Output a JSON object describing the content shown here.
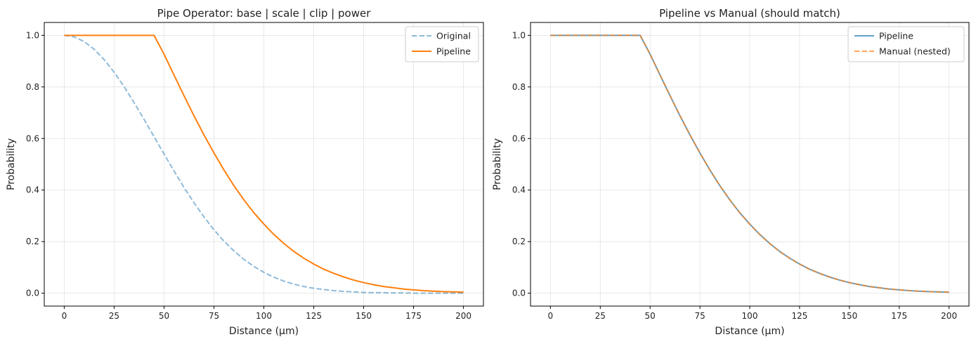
{
  "chart_data": [
    {
      "type": "line",
      "title": "Pipe Operator: base | scale | clip | power",
      "xlabel": "Distance (µm)",
      "ylabel": "Probability",
      "xlim": [
        -10,
        210
      ],
      "ylim": [
        -0.05,
        1.05
      ],
      "xticks": [
        0,
        25,
        50,
        75,
        100,
        125,
        150,
        175,
        200
      ],
      "yticks": [
        0.0,
        0.2,
        0.4,
        0.6,
        0.8,
        1.0
      ],
      "xtick_labels": [
        "0",
        "25",
        "50",
        "75",
        "100",
        "125",
        "150",
        "175",
        "200"
      ],
      "ytick_labels": [
        "0.0",
        "0.2",
        "0.4",
        "0.6",
        "0.8",
        "1.0"
      ],
      "grid": true,
      "legend": "top-right",
      "x": [
        0,
        5,
        10,
        15,
        20,
        25,
        30,
        35,
        40,
        45,
        50,
        55,
        60,
        65,
        70,
        75,
        80,
        85,
        90,
        95,
        100,
        105,
        110,
        115,
        120,
        125,
        130,
        135,
        140,
        145,
        150,
        155,
        160,
        165,
        170,
        175,
        180,
        185,
        190,
        195,
        200
      ],
      "series": [
        {
          "name": "Original",
          "color": "#1f77b4",
          "style": "dashed",
          "values": [
            1.0,
            0.994,
            0.976,
            0.946,
            0.906,
            0.857,
            0.801,
            0.739,
            0.674,
            0.607,
            0.54,
            0.474,
            0.41,
            0.351,
            0.296,
            0.246,
            0.202,
            0.164,
            0.131,
            0.104,
            0.081,
            0.062,
            0.047,
            0.035,
            0.026,
            0.019,
            0.014,
            0.01,
            0.007,
            0.005,
            0.003,
            0.002,
            0.002,
            0.001,
            0.001,
            0.0,
            0.0,
            0.0,
            0.0,
            0.0,
            0.0
          ]
        },
        {
          "name": "Pipeline",
          "color": "#ff7f0e",
          "style": "solid",
          "values": [
            1.0,
            1.0,
            1.0,
            1.0,
            1.0,
            1.0,
            1.0,
            1.0,
            1.0,
            1.0,
            0.927,
            0.846,
            0.766,
            0.688,
            0.614,
            0.544,
            0.478,
            0.417,
            0.362,
            0.312,
            0.268,
            0.228,
            0.193,
            0.162,
            0.136,
            0.113,
            0.093,
            0.077,
            0.063,
            0.051,
            0.041,
            0.033,
            0.026,
            0.021,
            0.016,
            0.013,
            0.01,
            0.008,
            0.006,
            0.005,
            0.004
          ]
        }
      ]
    },
    {
      "type": "line",
      "title": "Pipeline vs Manual (should match)",
      "xlabel": "Distance (µm)",
      "ylabel": "Probability",
      "xlim": [
        -10,
        210
      ],
      "ylim": [
        -0.05,
        1.05
      ],
      "xticks": [
        0,
        25,
        50,
        75,
        100,
        125,
        150,
        175,
        200
      ],
      "yticks": [
        0.0,
        0.2,
        0.4,
        0.6,
        0.8,
        1.0
      ],
      "xtick_labels": [
        "0",
        "25",
        "50",
        "75",
        "100",
        "125",
        "150",
        "175",
        "200"
      ],
      "ytick_labels": [
        "0.0",
        "0.2",
        "0.4",
        "0.6",
        "0.8",
        "1.0"
      ],
      "grid": true,
      "legend": "top-right",
      "x": [
        0,
        5,
        10,
        15,
        20,
        25,
        30,
        35,
        40,
        45,
        50,
        55,
        60,
        65,
        70,
        75,
        80,
        85,
        90,
        95,
        100,
        105,
        110,
        115,
        120,
        125,
        130,
        135,
        140,
        145,
        150,
        155,
        160,
        165,
        170,
        175,
        180,
        185,
        190,
        195,
        200
      ],
      "series": [
        {
          "name": "Pipeline",
          "color": "#1f77b4",
          "style": "solid",
          "values": [
            1.0,
            1.0,
            1.0,
            1.0,
            1.0,
            1.0,
            1.0,
            1.0,
            1.0,
            1.0,
            0.927,
            0.846,
            0.766,
            0.688,
            0.614,
            0.544,
            0.478,
            0.417,
            0.362,
            0.312,
            0.268,
            0.228,
            0.193,
            0.162,
            0.136,
            0.113,
            0.093,
            0.077,
            0.063,
            0.051,
            0.041,
            0.033,
            0.026,
            0.021,
            0.016,
            0.013,
            0.01,
            0.008,
            0.006,
            0.005,
            0.004
          ]
        },
        {
          "name": "Manual (nested)",
          "color": "#ff7f0e",
          "style": "dashed",
          "values": [
            1.0,
            1.0,
            1.0,
            1.0,
            1.0,
            1.0,
            1.0,
            1.0,
            1.0,
            1.0,
            0.927,
            0.846,
            0.766,
            0.688,
            0.614,
            0.544,
            0.478,
            0.417,
            0.362,
            0.312,
            0.268,
            0.228,
            0.193,
            0.162,
            0.136,
            0.113,
            0.093,
            0.077,
            0.063,
            0.051,
            0.041,
            0.033,
            0.026,
            0.021,
            0.016,
            0.013,
            0.01,
            0.008,
            0.006,
            0.005,
            0.004
          ]
        }
      ]
    }
  ]
}
